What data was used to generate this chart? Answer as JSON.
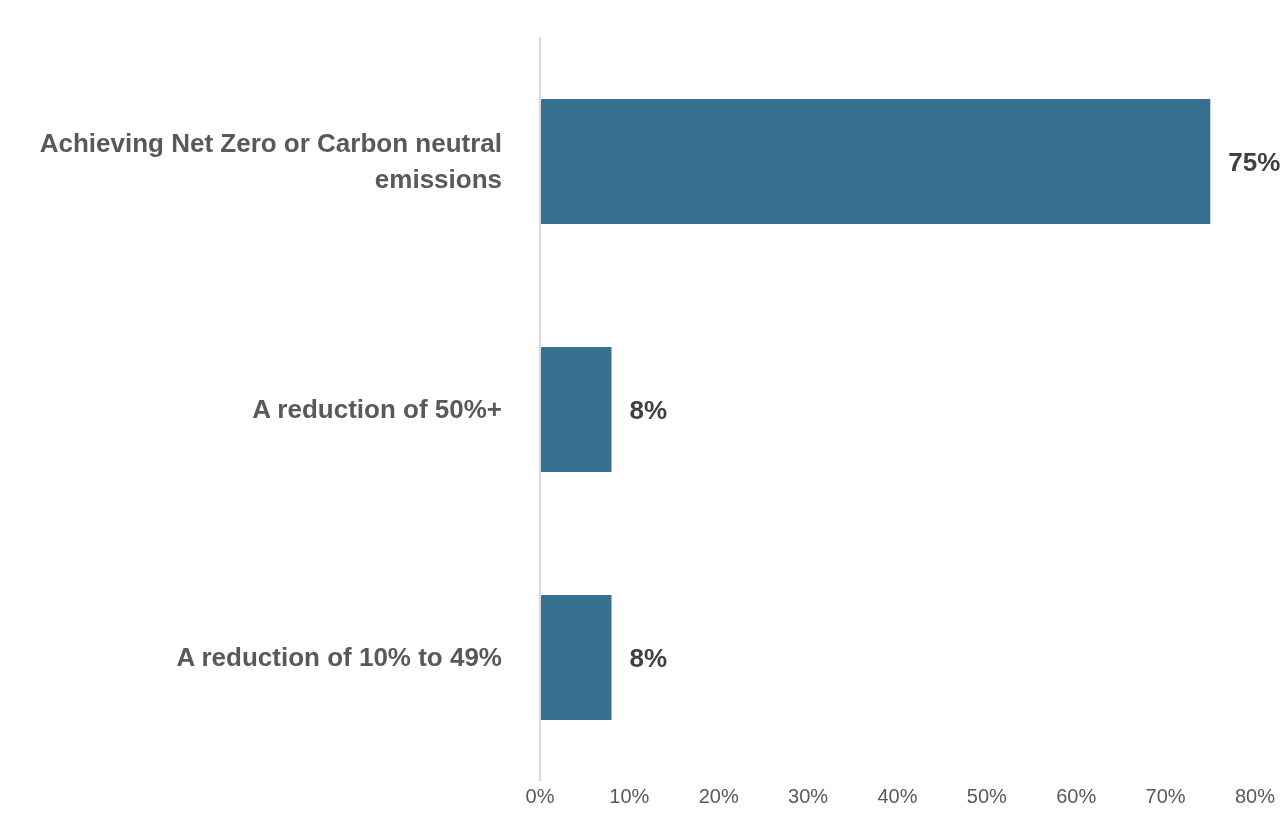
{
  "chart_data": {
    "type": "bar",
    "orientation": "horizontal",
    "categories": [
      "Achieving Net Zero or Carbon neutral emissions",
      "A reduction of 50%+",
      "A reduction of 10% to 49%"
    ],
    "values": [
      75,
      8,
      8
    ],
    "value_labels": [
      "75%",
      "8%",
      "8%"
    ],
    "color": "#38718f",
    "xlim": [
      0,
      80
    ],
    "xticks": [
      {
        "value": 0,
        "label": "0%"
      },
      {
        "value": 10,
        "label": "10%"
      },
      {
        "value": 20,
        "label": "20%"
      },
      {
        "value": 30,
        "label": "30%"
      },
      {
        "value": 40,
        "label": "40%"
      },
      {
        "value": 50,
        "label": "50%"
      },
      {
        "value": 60,
        "label": "60%"
      },
      {
        "value": 70,
        "label": "70%"
      },
      {
        "value": 80,
        "label": "80%"
      }
    ],
    "grid": false,
    "legend": false
  }
}
